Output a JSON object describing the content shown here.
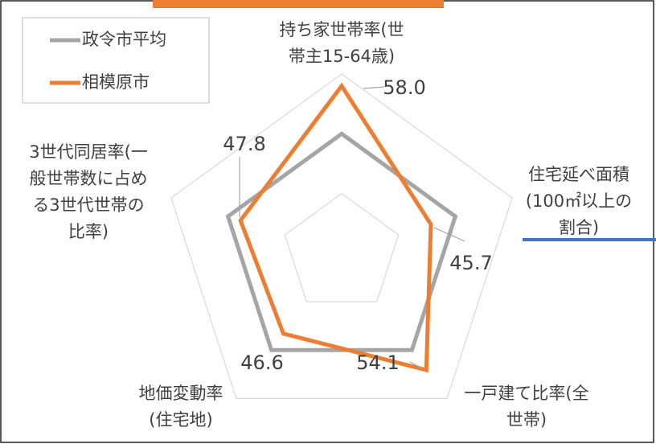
{
  "chart_data": {
    "type": "radar",
    "categories": [
      "持ち家世帯率(世\n帯主15-64歳)",
      "住宅延べ面積\n(100㎡以上の\n割合)",
      "一戸建て比率(全\n世帯)",
      "地価変動率\n(住宅地)",
      "3世代同居率(一\n般世帯数に占め\nる3世代世帯の\n比率)"
    ],
    "series": [
      {
        "name": "政令市平均",
        "color": "#a5a5a5",
        "values": [
          50,
          50,
          50,
          50,
          50
        ]
      },
      {
        "name": "相模原市",
        "color": "#ed7d31",
        "values": [
          58.0,
          45.7,
          54.1,
          46.6,
          47.8
        ],
        "value_labels": [
          "58.0",
          "45.7",
          "54.1",
          "46.6",
          "47.8"
        ]
      }
    ],
    "rlim": [
      30,
      60
    ],
    "rticks": [
      40,
      50,
      60
    ],
    "grid": true
  }
}
